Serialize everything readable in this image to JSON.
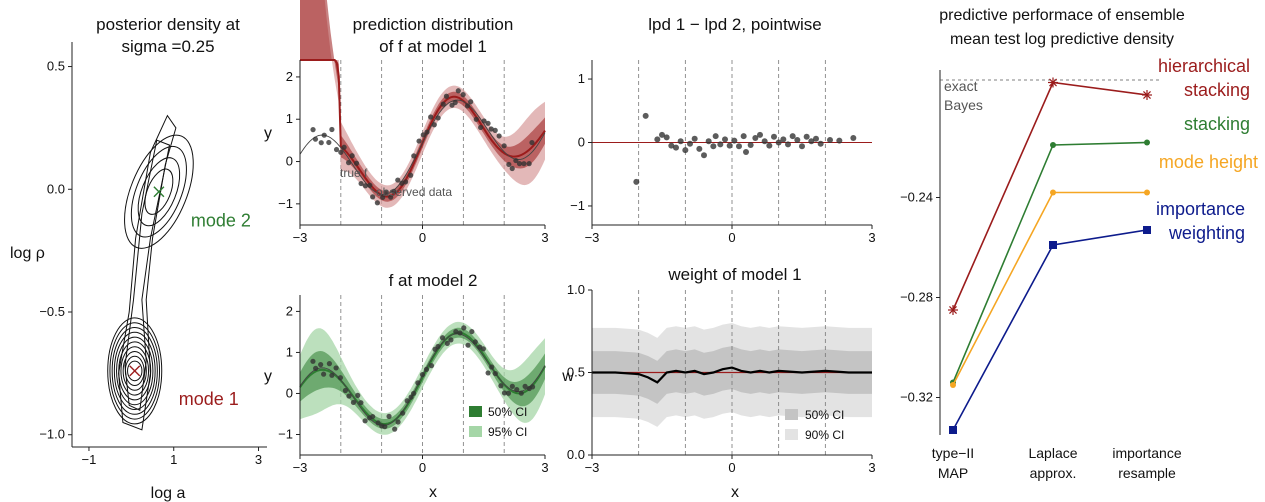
{
  "colors": {
    "red": "#9b1c1c",
    "red_light": "#d9a0a0",
    "green": "#2e7d32",
    "green_light": "#a5d6a7",
    "orange": "#f5a623",
    "blue": "#0d1b8c",
    "gray": "#555555"
  },
  "chart_data": [
    {
      "id": "posterior",
      "type": "contour",
      "title_lines": [
        "posterior density at",
        "sigma =0.25"
      ],
      "xlabel": "log a",
      "ylabel": "log ρ",
      "xlim": [
        -1.4,
        3.2
      ],
      "ylim": [
        -1.05,
        0.6
      ],
      "xticks": [
        "−1",
        "1",
        "3"
      ],
      "xtick_values": [
        -1,
        1,
        3
      ],
      "yticks": [
        "−1.0",
        "−0.5",
        "0.0",
        "0.5"
      ],
      "ytick_values": [
        -1.0,
        -0.5,
        0.0,
        0.5
      ],
      "modes": [
        {
          "label": "mode 2",
          "x": 0.65,
          "y": -0.01,
          "color": "green"
        },
        {
          "label": "mode 1",
          "x": 0.08,
          "y": -0.74,
          "color": "red"
        }
      ]
    },
    {
      "id": "pred1",
      "type": "line-band",
      "title_lines": [
        "prediction distribution",
        "of f at model 1"
      ],
      "ylabel": "y",
      "xlim": [
        -3,
        3
      ],
      "ylim": [
        -1.5,
        2.4
      ],
      "xticks": [
        "−3",
        "0",
        "3"
      ],
      "xtick_values": [
        -3,
        0,
        3
      ],
      "yticks": [
        "−1",
        "0",
        "1",
        "2"
      ],
      "ytick_values": [
        -1,
        0,
        1,
        2
      ],
      "annotations": [
        "true f",
        "observed data"
      ],
      "band_color": "red"
    },
    {
      "id": "lpd",
      "type": "scatter",
      "title_lines": [
        "lpd 1 −   lpd 2, pointwise"
      ],
      "xlim": [
        -3,
        3
      ],
      "ylim": [
        -1.3,
        1.3
      ],
      "xticks": [
        "−3",
        "0",
        "3"
      ],
      "xtick_values": [
        -3,
        0,
        3
      ],
      "yticks": [
        "−1",
        "0",
        "1"
      ],
      "ytick_values": [
        -1,
        0,
        1
      ],
      "points": [
        [
          -2.05,
          -0.62
        ],
        [
          -1.85,
          0.42
        ],
        [
          -1.6,
          0.05
        ],
        [
          -1.5,
          0.12
        ],
        [
          -1.4,
          0.08
        ],
        [
          -1.3,
          -0.05
        ],
        [
          -1.2,
          -0.08
        ],
        [
          -1.1,
          0.02
        ],
        [
          -1.0,
          -0.12
        ],
        [
          -0.9,
          -0.02
        ],
        [
          -0.8,
          0.06
        ],
        [
          -0.7,
          -0.1
        ],
        [
          -0.6,
          -0.2
        ],
        [
          -0.5,
          0.02
        ],
        [
          -0.4,
          -0.06
        ],
        [
          -0.35,
          0.1
        ],
        [
          -0.25,
          -0.03
        ],
        [
          -0.15,
          0.05
        ],
        [
          -0.05,
          -0.05
        ],
        [
          0.05,
          0.03
        ],
        [
          0.15,
          -0.06
        ],
        [
          0.25,
          0.1
        ],
        [
          0.3,
          -0.15
        ],
        [
          0.4,
          -0.04
        ],
        [
          0.5,
          0.07
        ],
        [
          0.6,
          0.12
        ],
        [
          0.7,
          0.02
        ],
        [
          0.8,
          -0.05
        ],
        [
          0.9,
          0.09
        ],
        [
          1.0,
          0.0
        ],
        [
          1.1,
          0.05
        ],
        [
          1.2,
          -0.03
        ],
        [
          1.3,
          0.1
        ],
        [
          1.4,
          0.04
        ],
        [
          1.5,
          -0.06
        ],
        [
          1.6,
          0.09
        ],
        [
          1.7,
          0.02
        ],
        [
          1.8,
          0.06
        ],
        [
          1.9,
          -0.02
        ],
        [
          2.1,
          0.04
        ],
        [
          2.3,
          0.03
        ],
        [
          2.6,
          0.07
        ]
      ]
    },
    {
      "id": "pred2",
      "type": "line-band",
      "title_lines": [
        "f at model 2"
      ],
      "xlabel": "x",
      "ylabel": "y",
      "xlim": [
        -3,
        3
      ],
      "ylim": [
        -1.5,
        2.4
      ],
      "xticks": [
        "−3",
        "0",
        "3"
      ],
      "xtick_values": [
        -3,
        0,
        3
      ],
      "yticks": [
        "−1",
        "0",
        "1",
        "2"
      ],
      "ytick_values": [
        -1,
        0,
        1,
        2
      ],
      "legend": [
        "50% CI",
        "95% CI"
      ],
      "band_color": "green"
    },
    {
      "id": "weight",
      "type": "line-band",
      "title_lines": [
        "weight of model 1"
      ],
      "xlabel": "x",
      "ylabel": "w",
      "xlim": [
        -3,
        3
      ],
      "ylim": [
        0.0,
        1.0
      ],
      "xticks": [
        "−3",
        "0",
        "3"
      ],
      "xtick_values": [
        -3,
        0,
        3
      ],
      "yticks": [
        "0.0",
        "0.5",
        "1.0"
      ],
      "ytick_values": [
        0.0,
        0.5,
        1.0
      ],
      "legend": [
        "50% CI",
        "90% CI"
      ],
      "reference": 0.5,
      "x": [
        -3,
        -2.5,
        -2,
        -1.8,
        -1.6,
        -1.4,
        -1.2,
        -1,
        -0.8,
        -0.6,
        -0.4,
        -0.2,
        0,
        0.2,
        0.4,
        0.6,
        0.8,
        1,
        1.5,
        2,
        2.5,
        3
      ],
      "w": [
        0.5,
        0.5,
        0.49,
        0.47,
        0.44,
        0.5,
        0.51,
        0.5,
        0.51,
        0.49,
        0.5,
        0.52,
        0.53,
        0.51,
        0.5,
        0.51,
        0.5,
        0.51,
        0.5,
        0.51,
        0.5,
        0.5
      ]
    },
    {
      "id": "ensemble",
      "type": "line",
      "title_lines": [
        "predictive performace of ensemble",
        "mean  test log predictive density"
      ],
      "categories": [
        "type−II\nMAP",
        "Laplace\napprox.",
        "importance\nresample"
      ],
      "category_lines": [
        [
          "type−II",
          "MAP"
        ],
        [
          "Laplace",
          "approx."
        ],
        [
          "importance",
          "resample"
        ]
      ],
      "ylim": [
        -0.335,
        -0.185
      ],
      "yticks": [
        "−0.24",
        "−0.28",
        "−0.32"
      ],
      "ytick_values": [
        -0.24,
        -0.28,
        -0.32
      ],
      "reference": {
        "label_lines": [
          "exact",
          "Bayes"
        ],
        "value": -0.193
      },
      "series": [
        {
          "name": "hierarchical\nstacking",
          "name_lines": [
            "hierarchical",
            "stacking"
          ],
          "color": "red",
          "marker": "star",
          "values": [
            -0.285,
            -0.194,
            -0.199
          ]
        },
        {
          "name": "stacking",
          "name_lines": [
            "stacking"
          ],
          "color": "green",
          "marker": "dot",
          "values": [
            -0.314,
            -0.219,
            -0.218
          ]
        },
        {
          "name": "mode height",
          "name_lines": [
            "mode height"
          ],
          "color": "orange",
          "marker": "dot",
          "values": [
            -0.315,
            -0.238,
            -0.238
          ]
        },
        {
          "name": "importance\nweighting",
          "name_lines": [
            "importance",
            "weighting"
          ],
          "color": "blue",
          "marker": "square",
          "values": [
            -0.333,
            -0.259,
            -0.253
          ]
        }
      ]
    }
  ]
}
